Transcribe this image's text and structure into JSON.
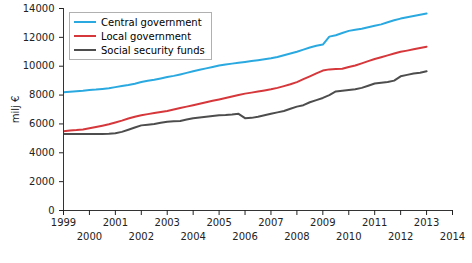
{
  "chart_data": {
    "type": "line",
    "ylabel": "milj €",
    "x": [
      1999,
      1999.25,
      1999.5,
      1999.75,
      2000,
      2000.25,
      2000.5,
      2000.75,
      2001,
      2001.25,
      2001.5,
      2001.75,
      2002,
      2002.25,
      2002.5,
      2002.75,
      2003,
      2003.25,
      2003.5,
      2003.75,
      2004,
      2004.25,
      2004.5,
      2004.75,
      2005,
      2005.25,
      2005.5,
      2005.75,
      2006,
      2006.25,
      2006.5,
      2006.75,
      2007,
      2007.25,
      2007.5,
      2007.75,
      2008,
      2008.25,
      2008.5,
      2008.75,
      2009,
      2009.25,
      2009.5,
      2009.75,
      2010,
      2010.25,
      2010.5,
      2010.75,
      2011,
      2011.25,
      2011.5,
      2011.75,
      2012,
      2012.25,
      2012.5,
      2012.75,
      2013
    ],
    "series": [
      {
        "name": "Central government",
        "color": "#2aa9e0",
        "values": [
          8200,
          8230,
          8270,
          8300,
          8350,
          8380,
          8420,
          8470,
          8550,
          8630,
          8700,
          8790,
          8900,
          8990,
          9060,
          9150,
          9250,
          9330,
          9430,
          9540,
          9650,
          9750,
          9850,
          9950,
          10050,
          10120,
          10180,
          10240,
          10300,
          10360,
          10420,
          10480,
          10550,
          10640,
          10760,
          10880,
          11000,
          11150,
          11300,
          11420,
          11500,
          12050,
          12150,
          12300,
          12450,
          12520,
          12600,
          12700,
          12800,
          12900,
          13050,
          13180,
          13300,
          13400,
          13480,
          13560,
          13650
        ]
      },
      {
        "name": "Local government",
        "color": "#d6373b",
        "values": [
          5500,
          5550,
          5580,
          5620,
          5700,
          5790,
          5880,
          5980,
          6100,
          6230,
          6380,
          6500,
          6600,
          6680,
          6760,
          6830,
          6900,
          7000,
          7100,
          7200,
          7300,
          7400,
          7500,
          7600,
          7700,
          7800,
          7900,
          8000,
          8100,
          8170,
          8240,
          8320,
          8400,
          8500,
          8620,
          8750,
          8900,
          9100,
          9300,
          9500,
          9700,
          9780,
          9800,
          9820,
          9950,
          10050,
          10200,
          10350,
          10500,
          10620,
          10750,
          10880,
          11000,
          11080,
          11170,
          11260,
          11350
        ]
      },
      {
        "name": "Social security funds",
        "color": "#4d4d4d",
        "values": [
          5300,
          5300,
          5300,
          5300,
          5300,
          5300,
          5300,
          5320,
          5350,
          5450,
          5600,
          5750,
          5900,
          5950,
          6000,
          6080,
          6150,
          6180,
          6200,
          6300,
          6400,
          6450,
          6500,
          6550,
          6600,
          6620,
          6650,
          6700,
          6400,
          6420,
          6500,
          6600,
          6700,
          6800,
          6900,
          7050,
          7200,
          7300,
          7500,
          7650,
          7800,
          8000,
          8250,
          8300,
          8350,
          8400,
          8500,
          8650,
          8800,
          8850,
          8900,
          9000,
          9300,
          9400,
          9500,
          9550,
          9650
        ]
      }
    ],
    "xlim": [
      1999,
      2014
    ],
    "xticks": [
      1999,
      2000,
      2001,
      2002,
      2003,
      2004,
      2005,
      2006,
      2007,
      2008,
      2009,
      2010,
      2011,
      2012,
      2013,
      2014
    ],
    "ylim": [
      0,
      14000
    ],
    "yticks": [
      0,
      2000,
      4000,
      6000,
      8000,
      10000,
      12000,
      14000
    ],
    "grid": false,
    "legend": "top-left"
  }
}
